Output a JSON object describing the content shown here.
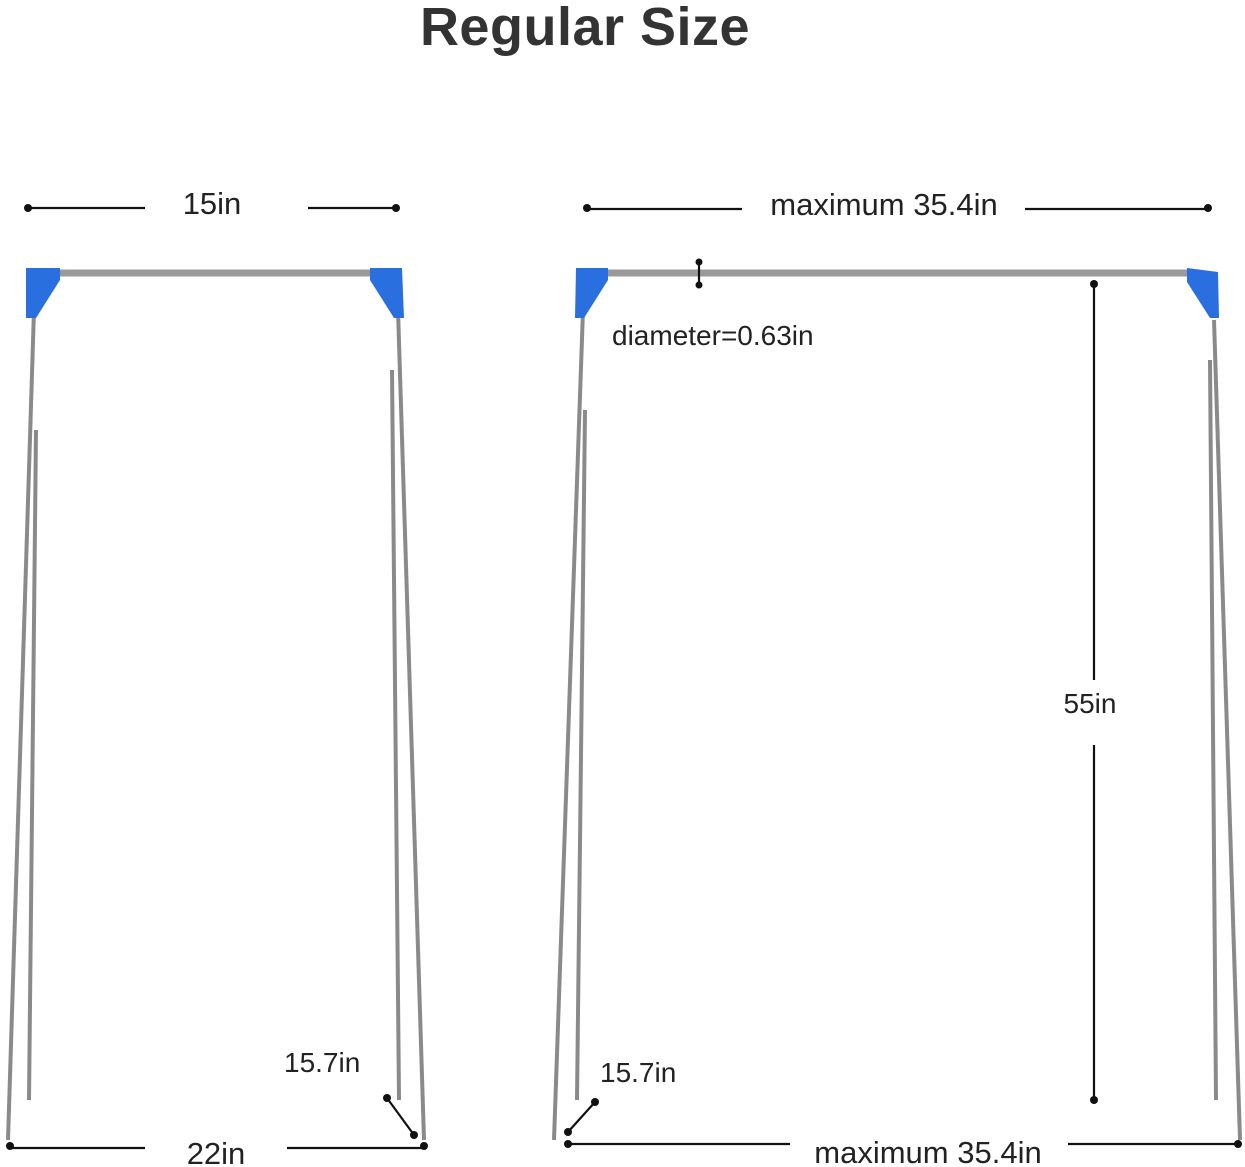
{
  "title": "Regular Size",
  "colors": {
    "connector": "#2a6fe0",
    "pole": "#8a8a8a",
    "dimension_line": "#111111"
  },
  "left_view": {
    "top_width": "15in",
    "bottom_width": "22in",
    "foot_length": "15.7in"
  },
  "right_view": {
    "top_width": "maximum 35.4in",
    "bottom_width": "maximum 35.4in",
    "diameter": "diameter=0.63in",
    "height": "55in",
    "foot_length": "15.7in"
  }
}
